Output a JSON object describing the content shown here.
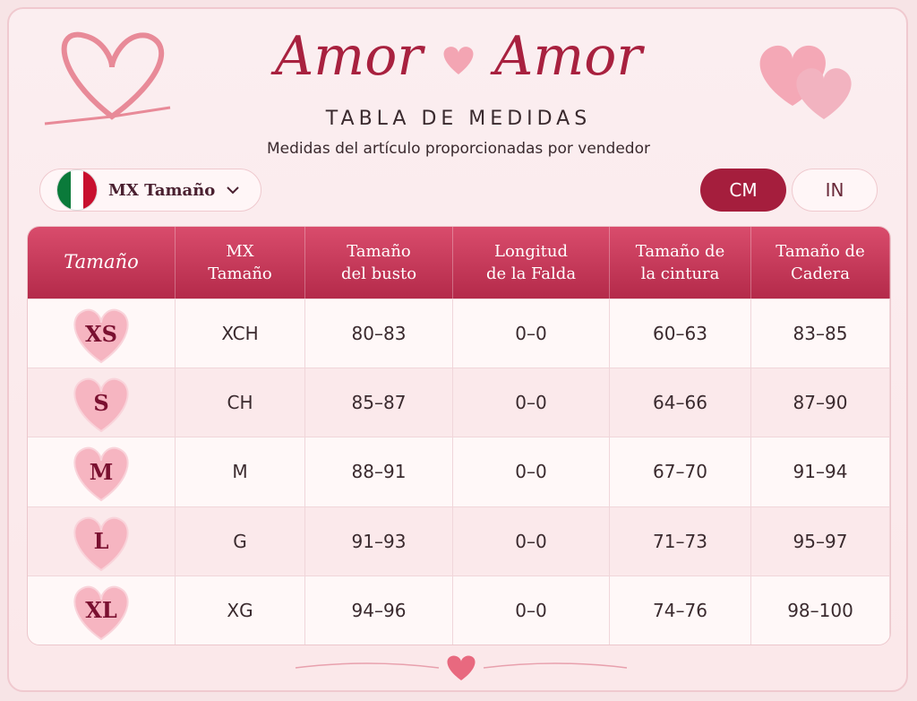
{
  "header": {
    "brand": [
      "Amor",
      "Amor"
    ],
    "subtitle": "TABLA DE MEDIDAS",
    "note": "Medidas del artículo proporcionadas por vendedor"
  },
  "controls": {
    "region": "MX Tamaño",
    "units": [
      "CM",
      "IN"
    ]
  },
  "table": {
    "headers": [
      "Tamaño",
      "MX\nTamaño",
      "Tamaño\ndel busto",
      "Longitud\nde la Falda",
      "Tamaño de\nla cintura",
      "Tamaño de\nCadera"
    ],
    "rows": [
      [
        "XS",
        "XCH",
        "80–83",
        "0–0",
        "60–63",
        "83–85"
      ],
      [
        "S",
        "CH",
        "85–87",
        "0–0",
        "64–66",
        "87–90"
      ],
      [
        "M",
        "M",
        "88–91",
        "0–0",
        "67–70",
        "91–94"
      ],
      [
        "L",
        "G",
        "91–93",
        "0–0",
        "71–73",
        "95–97"
      ],
      [
        "XL",
        "XG",
        "94–96",
        "0–0",
        "74–76",
        "98–100"
      ]
    ]
  }
}
